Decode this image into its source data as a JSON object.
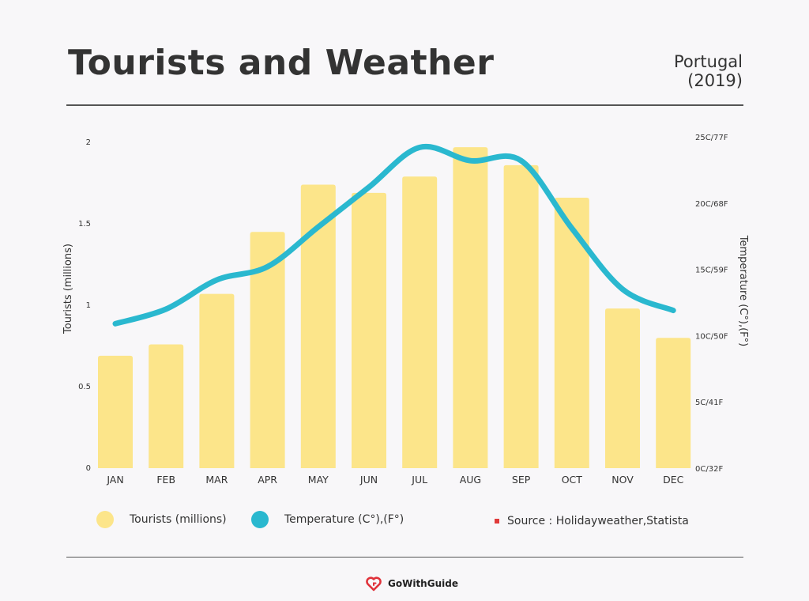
{
  "header": {
    "title": "Tourists and Weather",
    "region_line1": "Portugal",
    "region_line2": "(2019)"
  },
  "chart_data": {
    "type": "bar",
    "categories": [
      "JAN",
      "FEB",
      "MAR",
      "APR",
      "MAY",
      "JUN",
      "JUL",
      "AUG",
      "SEP",
      "OCT",
      "NOV",
      "DEC"
    ],
    "series": [
      {
        "name": "Tourists (millions)",
        "kind": "bar",
        "axis": "left",
        "color": "#fce58a",
        "values": [
          0.69,
          0.76,
          1.07,
          1.45,
          1.74,
          1.69,
          1.79,
          1.97,
          1.86,
          1.66,
          0.98,
          0.8
        ]
      },
      {
        "name": "Temperature (C°),(F°)",
        "kind": "line",
        "axis": "right",
        "color": "#2ab8cf",
        "values": [
          10.9,
          12,
          14.2,
          15.2,
          18.2,
          21.2,
          24.2,
          23.2,
          23.2,
          18.1,
          13.5,
          11.9
        ]
      }
    ],
    "ylabel": "Tourists (millions)",
    "y2label": "Temperature (C°),(F°)",
    "ylim": [
      0,
      2
    ],
    "y2lim": [
      0,
      25
    ],
    "yticks": [
      "0",
      "0.5",
      "1",
      "1.5",
      "2"
    ],
    "y2ticks": [
      "0C/32F",
      "5C/41F",
      "10C/50F",
      "15C/59F",
      "20C/68F",
      "25C/77F"
    ],
    "grid": false,
    "legend_position": "bottom"
  },
  "legend": {
    "tourists_label": "Tourists (millions)",
    "temperature_label": "Temperature (C°),(F°)",
    "tourists_color": "#fce58a",
    "temperature_color": "#2ab8cf"
  },
  "source": {
    "label": "Source : Holidayweather,Statista"
  },
  "brand": {
    "name": "GoWithGuide",
    "color": "#e0323a"
  }
}
